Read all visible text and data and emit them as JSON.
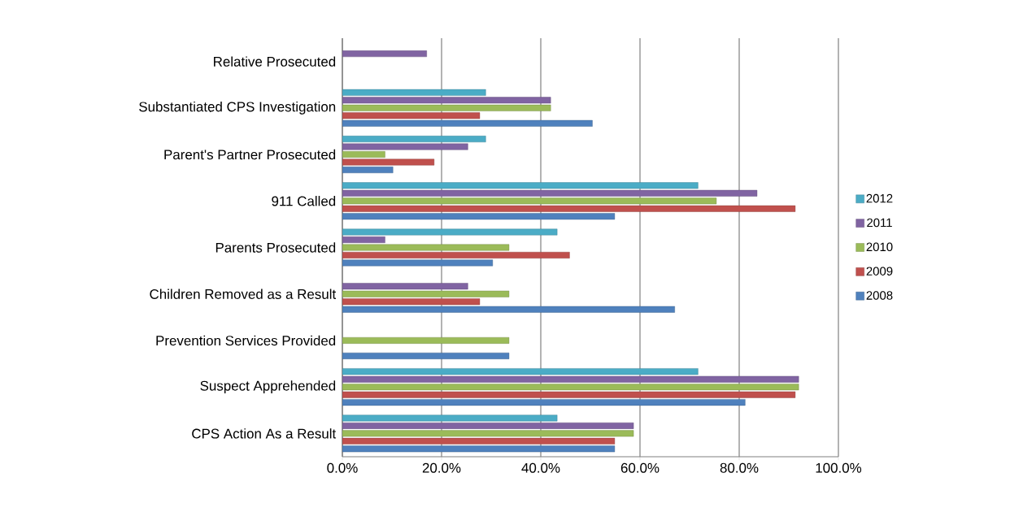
{
  "chart_data": {
    "type": "bar",
    "orientation": "horizontal",
    "categories": [
      "Relative Prosecuted",
      "Substantiated CPS Investigation",
      "Parent's Partner Prosecuted",
      "911 Called",
      "Parents Prosecuted",
      "Children Removed as a Result",
      "Prevention Services Provided",
      "Suspect Apprehended",
      "CPS Action As a Result"
    ],
    "series": [
      {
        "name": "2008",
        "color": "#4f81bd",
        "values": [
          null,
          50.4,
          10.2,
          54.9,
          30.3,
          67.0,
          33.6,
          81.2,
          54.9
        ]
      },
      {
        "name": "2009",
        "color": "#c0504d",
        "values": [
          null,
          27.7,
          18.5,
          91.3,
          45.8,
          27.7,
          null,
          91.3,
          54.9
        ]
      },
      {
        "name": "2010",
        "color": "#9bbb59",
        "values": [
          null,
          42.0,
          8.6,
          75.4,
          33.6,
          33.6,
          33.6,
          92.0,
          58.7
        ]
      },
      {
        "name": "2011",
        "color": "#8064a2",
        "values": [
          17.0,
          42.0,
          25.3,
          83.6,
          8.6,
          25.3,
          null,
          92.0,
          58.7
        ]
      },
      {
        "name": "2012",
        "color": "#4bacc6",
        "values": [
          null,
          28.9,
          28.9,
          71.7,
          43.3,
          null,
          null,
          71.7,
          43.3
        ]
      }
    ],
    "xlim": [
      0,
      100
    ],
    "xticks": [
      {
        "value": 0,
        "label": "0.0%"
      },
      {
        "value": 20,
        "label": "20.0%"
      },
      {
        "value": 40,
        "label": "40.0%"
      },
      {
        "value": 60,
        "label": "60.0%"
      },
      {
        "value": 80,
        "label": "80.0%"
      },
      {
        "value": 100,
        "label": "100.0%"
      }
    ],
    "grid": "x",
    "legend": "right"
  }
}
